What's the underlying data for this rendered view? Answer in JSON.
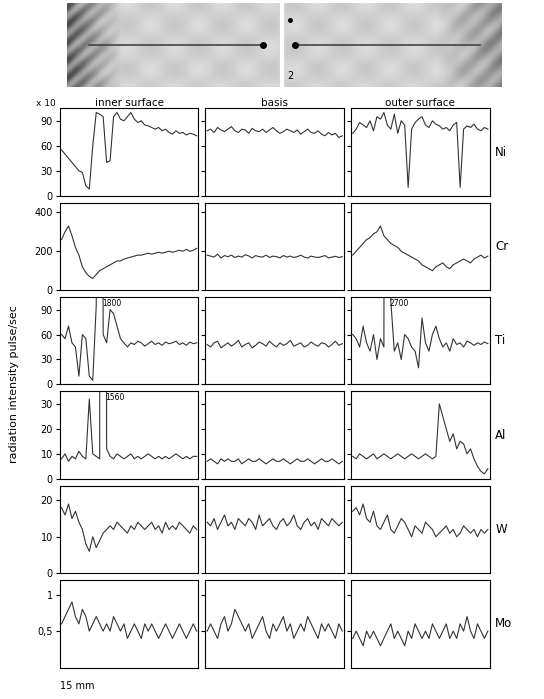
{
  "y_label": "radiation intensity pulse/sec",
  "scale_label": "15 mm",
  "photo": {
    "label": "2"
  },
  "columns": [
    "inner surface",
    "basis",
    "outer surface"
  ],
  "chart_data": [
    {
      "type": "line",
      "element": "Ni",
      "multiplier": "x 10",
      "color": "#333333",
      "tick_labels": "y",
      "ylim": [
        0,
        105
      ],
      "yticks": [
        0,
        30,
        60,
        90
      ],
      "panels": [
        {
          "column": "inner surface",
          "values": [
            55,
            50,
            45,
            40,
            35,
            30,
            28,
            12,
            8,
            60,
            100,
            98,
            95,
            40,
            42,
            95,
            100,
            92,
            90,
            95,
            100,
            92,
            88,
            90,
            85,
            84,
            82,
            80,
            82,
            78,
            80,
            76,
            74,
            78,
            75,
            76,
            73,
            75,
            74,
            72
          ]
        },
        {
          "column": "basis",
          "values": [
            78,
            80,
            76,
            82,
            79,
            77,
            80,
            83,
            78,
            76,
            80,
            79,
            75,
            81,
            78,
            77,
            80,
            76,
            79,
            82,
            78,
            75,
            77,
            80,
            78,
            76,
            79,
            74,
            77,
            80,
            76,
            75,
            78,
            74,
            72,
            76,
            73,
            75,
            70,
            72
          ]
        },
        {
          "column": "outer surface",
          "values": [
            75,
            80,
            88,
            85,
            82,
            90,
            78,
            95,
            92,
            100,
            85,
            80,
            98,
            75,
            90,
            85,
            10,
            80,
            88,
            92,
            95,
            85,
            82,
            90,
            86,
            84,
            80,
            82,
            78,
            85,
            88,
            10,
            80,
            84,
            82,
            86,
            80,
            78,
            82,
            80
          ]
        }
      ]
    },
    {
      "type": "line",
      "element": "Cr",
      "color": "#333333",
      "tick_labels": "y",
      "ylim": [
        0,
        450
      ],
      "yticks": [
        0,
        200,
        400
      ],
      "panels": [
        {
          "column": "inner surface",
          "values": [
            260,
            300,
            330,
            280,
            220,
            180,
            120,
            90,
            70,
            60,
            80,
            100,
            110,
            120,
            130,
            140,
            150,
            150,
            160,
            165,
            170,
            175,
            180,
            180,
            185,
            190,
            185,
            190,
            195,
            190,
            195,
            200,
            195,
            200,
            205,
            200,
            210,
            200,
            205,
            215
          ]
        },
        {
          "column": "basis",
          "values": [
            180,
            175,
            170,
            185,
            165,
            178,
            172,
            180,
            168,
            175,
            170,
            182,
            176,
            165,
            178,
            172,
            170,
            180,
            168,
            175,
            172,
            166,
            178,
            170,
            175,
            168,
            172,
            180,
            170,
            165,
            175,
            170,
            168,
            172,
            178,
            166,
            170,
            174,
            168,
            172
          ]
        },
        {
          "column": "outer surface",
          "values": [
            180,
            200,
            220,
            240,
            260,
            270,
            290,
            300,
            330,
            280,
            260,
            240,
            230,
            220,
            200,
            190,
            180,
            170,
            160,
            150,
            130,
            120,
            110,
            100,
            120,
            130,
            140,
            120,
            110,
            130,
            140,
            150,
            160,
            150,
            140,
            160,
            170,
            180,
            165,
            175
          ]
        }
      ]
    },
    {
      "type": "line",
      "element": "Ti",
      "color": "#333333",
      "tick_labels": "y",
      "ylim": [
        0,
        105
      ],
      "yticks": [
        0,
        30,
        60,
        90
      ],
      "panels": [
        {
          "column": "inner surface",
          "peak_label": "1800",
          "values": [
            60,
            55,
            70,
            50,
            45,
            10,
            60,
            55,
            10,
            5,
            95,
            1800,
            60,
            50,
            90,
            85,
            70,
            55,
            50,
            45,
            50,
            48,
            52,
            50,
            46,
            49,
            52,
            48,
            50,
            47,
            51,
            49,
            50,
            52,
            48,
            50,
            47,
            51,
            49,
            50
          ]
        },
        {
          "column": "basis",
          "values": [
            48,
            45,
            50,
            52,
            44,
            47,
            50,
            46,
            49,
            53,
            45,
            48,
            50,
            44,
            47,
            51,
            49,
            46,
            52,
            48,
            45,
            50,
            47,
            49,
            53,
            46,
            48,
            50,
            45,
            47,
            51,
            48,
            46,
            50,
            49,
            45,
            48,
            52,
            47,
            49
          ]
        },
        {
          "column": "outer surface",
          "peak_label": "2700",
          "values": [
            60,
            55,
            45,
            70,
            50,
            40,
            60,
            30,
            55,
            45,
            2700,
            100,
            40,
            50,
            30,
            60,
            55,
            45,
            40,
            20,
            80,
            50,
            40,
            60,
            70,
            55,
            45,
            50,
            40,
            55,
            48,
            50,
            45,
            52,
            50,
            47,
            50,
            48,
            51,
            49
          ]
        }
      ]
    },
    {
      "type": "line",
      "element": "Al",
      "color": "#333333",
      "tick_labels": "y",
      "ylim": [
        0,
        35
      ],
      "yticks": [
        0,
        10,
        20,
        30
      ],
      "panels": [
        {
          "column": "inner surface",
          "peak_label": "1560",
          "values": [
            8,
            10,
            7,
            9,
            8,
            11,
            9,
            8,
            32,
            10,
            9,
            8,
            1560,
            12,
            9,
            8,
            10,
            9,
            8,
            9,
            10,
            8,
            9,
            8,
            9,
            10,
            9,
            8,
            9,
            8,
            9,
            8,
            9,
            10,
            9,
            8,
            9,
            8,
            9,
            9
          ]
        },
        {
          "column": "basis",
          "values": [
            7,
            8,
            7,
            6,
            8,
            7,
            8,
            7,
            7,
            8,
            6,
            7,
            8,
            7,
            7,
            8,
            7,
            6,
            7,
            8,
            7,
            7,
            8,
            7,
            6,
            7,
            8,
            7,
            7,
            8,
            7,
            6,
            7,
            8,
            7,
            7,
            8,
            7,
            6,
            7
          ]
        },
        {
          "column": "outer surface",
          "values": [
            9,
            8,
            10,
            9,
            8,
            9,
            10,
            8,
            9,
            10,
            9,
            8,
            9,
            10,
            9,
            8,
            9,
            10,
            9,
            8,
            9,
            10,
            9,
            8,
            9,
            30,
            25,
            20,
            15,
            18,
            12,
            15,
            14,
            10,
            12,
            8,
            5,
            3,
            2,
            4
          ]
        }
      ]
    },
    {
      "type": "line",
      "element": "W",
      "color": "#333333",
      "tick_labels": "y",
      "ylim": [
        0,
        24
      ],
      "yticks": [
        0,
        10,
        20
      ],
      "panels": [
        {
          "column": "inner surface",
          "values": [
            18,
            16,
            19,
            15,
            17,
            14,
            12,
            8,
            6,
            10,
            7,
            9,
            11,
            12,
            13,
            12,
            14,
            13,
            12,
            11,
            13,
            12,
            14,
            13,
            12,
            13,
            14,
            12,
            13,
            11,
            14,
            12,
            13,
            12,
            14,
            13,
            12,
            11,
            13,
            12
          ]
        },
        {
          "column": "basis",
          "values": [
            14,
            13,
            15,
            12,
            14,
            16,
            13,
            14,
            12,
            15,
            14,
            13,
            15,
            14,
            12,
            16,
            13,
            14,
            15,
            13,
            12,
            14,
            15,
            13,
            14,
            16,
            13,
            12,
            14,
            15,
            13,
            14,
            12,
            15,
            14,
            13,
            15,
            14,
            13,
            14
          ]
        },
        {
          "column": "outer surface",
          "values": [
            17,
            18,
            16,
            19,
            15,
            14,
            17,
            13,
            12,
            14,
            16,
            12,
            11,
            13,
            15,
            14,
            12,
            10,
            13,
            12,
            11,
            14,
            13,
            12,
            10,
            11,
            12,
            13,
            11,
            12,
            10,
            11,
            13,
            12,
            11,
            12,
            10,
            12,
            11,
            12
          ]
        }
      ]
    },
    {
      "type": "line",
      "element": "Mo",
      "color": "#333333",
      "tick_labels": "y",
      "ylim": [
        0,
        1.2
      ],
      "yticks": [
        {
          "value": 0.5,
          "label": "0,5"
        },
        1
      ],
      "panels": [
        {
          "column": "inner surface",
          "values": [
            0.6,
            0.7,
            0.8,
            0.9,
            0.7,
            0.6,
            0.8,
            0.7,
            0.5,
            0.6,
            0.7,
            0.6,
            0.5,
            0.6,
            0.5,
            0.7,
            0.6,
            0.5,
            0.6,
            0.4,
            0.5,
            0.6,
            0.5,
            0.4,
            0.6,
            0.5,
            0.6,
            0.5,
            0.4,
            0.5,
            0.6,
            0.5,
            0.4,
            0.5,
            0.6,
            0.5,
            0.4,
            0.5,
            0.6,
            0.5
          ]
        },
        {
          "column": "basis",
          "values": [
            0.5,
            0.6,
            0.5,
            0.4,
            0.6,
            0.7,
            0.5,
            0.6,
            0.8,
            0.7,
            0.6,
            0.5,
            0.6,
            0.4,
            0.5,
            0.6,
            0.7,
            0.5,
            0.4,
            0.6,
            0.5,
            0.6,
            0.7,
            0.5,
            0.6,
            0.4,
            0.5,
            0.6,
            0.5,
            0.7,
            0.6,
            0.5,
            0.4,
            0.6,
            0.5,
            0.6,
            0.5,
            0.4,
            0.6,
            0.5
          ]
        },
        {
          "column": "outer surface",
          "values": [
            0.4,
            0.5,
            0.4,
            0.3,
            0.5,
            0.4,
            0.5,
            0.4,
            0.3,
            0.4,
            0.5,
            0.6,
            0.4,
            0.5,
            0.4,
            0.3,
            0.5,
            0.4,
            0.6,
            0.5,
            0.4,
            0.5,
            0.4,
            0.6,
            0.5,
            0.4,
            0.5,
            0.6,
            0.4,
            0.5,
            0.4,
            0.6,
            0.5,
            0.7,
            0.5,
            0.4,
            0.6,
            0.5,
            0.4,
            0.5
          ]
        }
      ]
    }
  ]
}
